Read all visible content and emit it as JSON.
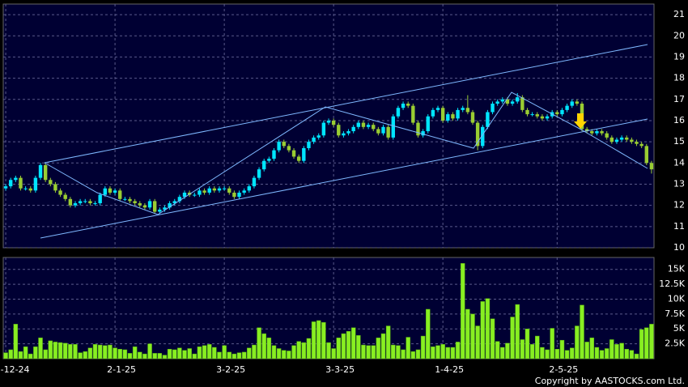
{
  "chart_data": [
    {
      "type": "candlestick",
      "categories": [
        "2-12-24",
        null,
        null,
        null,
        null,
        null,
        null,
        null,
        null,
        null,
        null,
        null,
        null,
        null,
        null,
        null,
        null,
        null,
        null,
        null,
        null,
        null,
        "2-1-25",
        null,
        null,
        null,
        null,
        null,
        null,
        null,
        null,
        null,
        null,
        null,
        null,
        null,
        null,
        null,
        null,
        null,
        null,
        null,
        null,
        null,
        "3-2-25",
        null,
        null,
        null,
        null,
        null,
        null,
        null,
        null,
        null,
        null,
        null,
        null,
        null,
        null,
        null,
        null,
        null,
        null,
        null,
        null,
        null,
        "3-3-25",
        null,
        null,
        null,
        null,
        null,
        null,
        null,
        null,
        null,
        null,
        null,
        null,
        null,
        null,
        null,
        null,
        null,
        null,
        null,
        null,
        null,
        "1-4-25",
        null,
        null,
        null,
        null,
        null,
        null,
        null,
        null,
        null,
        null,
        null,
        null,
        null,
        null,
        null,
        null,
        null,
        null,
        null,
        null,
        null,
        null,
        "2-5-25",
        null,
        null,
        null,
        null,
        null,
        null,
        null,
        null,
        null,
        null,
        null,
        null,
        null,
        null,
        null,
        null,
        null,
        null,
        null
      ],
      "open": [
        12.8,
        12.9,
        13.2,
        13.3,
        12.8,
        12.8,
        12.7,
        13.3,
        13.9,
        13.2,
        13.0,
        12.7,
        12.5,
        12.3,
        12.0,
        12.1,
        12.2,
        12.2,
        12.1,
        12.1,
        12.5,
        12.8,
        12.6,
        12.7,
        12.3,
        12.3,
        12.2,
        12.1,
        12.0,
        11.9,
        12.2,
        11.7,
        11.8,
        11.9,
        12.1,
        12.2,
        12.4,
        12.6,
        12.5,
        12.5,
        12.7,
        12.6,
        12.8,
        12.7,
        12.8,
        12.8,
        12.6,
        12.4,
        12.6,
        12.7,
        12.9,
        13.3,
        13.7,
        14.1,
        14.2,
        14.6,
        15.0,
        14.8,
        14.6,
        14.3,
        14.1,
        14.7,
        15.0,
        15.2,
        15.3,
        15.9,
        16.0,
        15.8,
        15.3,
        15.4,
        15.5,
        15.7,
        15.9,
        15.7,
        15.8,
        15.6,
        15.4,
        15.7,
        15.2,
        16.2,
        16.6,
        16.8,
        16.7,
        15.9,
        15.3,
        15.5,
        16.2,
        16.5,
        16.6,
        16.0,
        16.3,
        16.1,
        16.5,
        16.6,
        16.4,
        15.9,
        14.8,
        15.7,
        16.4,
        16.8,
        16.9,
        17.0,
        16.8,
        16.9,
        17.1,
        16.5,
        16.3,
        16.3,
        16.2,
        16.1,
        16.2,
        16.4,
        16.3,
        16.5,
        16.7,
        16.9,
        16.8,
        15.6,
        15.5,
        15.4,
        15.5,
        15.4,
        15.2,
        15.0,
        15.1,
        15.2,
        15.1,
        15.0,
        14.9,
        14.8,
        14.0
      ],
      "high": [
        13.0,
        13.3,
        13.4,
        13.4,
        12.9,
        12.9,
        13.4,
        14.0,
        14.0,
        13.3,
        13.1,
        12.8,
        12.6,
        12.4,
        12.2,
        12.3,
        12.3,
        12.3,
        12.2,
        12.6,
        12.9,
        12.9,
        12.8,
        12.8,
        12.4,
        12.4,
        12.3,
        12.2,
        12.1,
        12.3,
        12.3,
        11.9,
        12.0,
        12.2,
        12.3,
        12.5,
        12.7,
        12.7,
        12.6,
        12.8,
        12.8,
        12.9,
        12.9,
        12.9,
        12.9,
        12.9,
        12.7,
        12.7,
        12.8,
        13.0,
        13.4,
        13.8,
        14.2,
        14.3,
        14.7,
        15.1,
        15.1,
        14.9,
        14.7,
        14.4,
        14.8,
        15.1,
        15.3,
        15.4,
        16.0,
        16.1,
        16.1,
        15.9,
        15.5,
        15.6,
        15.8,
        16.0,
        16.0,
        15.9,
        15.9,
        15.7,
        15.8,
        15.8,
        16.3,
        16.7,
        16.9,
        16.9,
        16.8,
        16.0,
        15.6,
        16.3,
        16.6,
        16.7,
        16.7,
        16.4,
        16.4,
        16.6,
        16.7,
        17.2,
        16.5,
        16.0,
        15.8,
        16.5,
        16.9,
        17.0,
        17.1,
        17.1,
        17.0,
        17.3,
        17.2,
        16.6,
        16.4,
        16.4,
        16.3,
        16.3,
        16.5,
        16.5,
        16.6,
        16.8,
        17.0,
        17.0,
        16.9,
        15.7,
        15.6,
        15.6,
        15.6,
        15.5,
        15.3,
        15.2,
        15.3,
        15.3,
        15.2,
        15.1,
        15.0,
        14.9,
        14.1
      ],
      "low": [
        12.7,
        12.8,
        13.1,
        12.7,
        12.7,
        12.6,
        12.6,
        13.2,
        13.1,
        12.9,
        12.6,
        12.4,
        12.2,
        11.9,
        11.9,
        12.0,
        12.1,
        12.0,
        12.0,
        12.0,
        12.4,
        12.5,
        12.5,
        12.2,
        12.2,
        12.1,
        12.0,
        11.9,
        11.8,
        11.8,
        11.6,
        11.6,
        11.7,
        11.8,
        12.0,
        12.1,
        12.3,
        12.4,
        12.4,
        12.4,
        12.5,
        12.5,
        12.6,
        12.6,
        12.7,
        12.5,
        12.3,
        12.3,
        12.5,
        12.6,
        12.8,
        13.2,
        13.6,
        14.0,
        14.1,
        14.5,
        14.7,
        14.5,
        14.2,
        14.0,
        14.0,
        14.6,
        14.9,
        15.1,
        15.2,
        15.8,
        15.7,
        15.2,
        15.2,
        15.3,
        15.4,
        15.6,
        15.6,
        15.6,
        15.5,
        15.3,
        15.3,
        15.1,
        15.1,
        16.1,
        16.5,
        16.6,
        15.8,
        15.2,
        15.2,
        15.4,
        16.1,
        16.4,
        15.9,
        15.9,
        16.0,
        16.0,
        16.4,
        16.3,
        15.8,
        14.6,
        14.7,
        15.6,
        16.3,
        16.7,
        16.8,
        16.7,
        16.7,
        16.8,
        16.4,
        16.2,
        16.2,
        16.1,
        16.0,
        16.0,
        16.1,
        16.2,
        16.2,
        16.4,
        16.6,
        16.7,
        15.5,
        15.4,
        15.3,
        15.3,
        15.3,
        15.1,
        14.9,
        14.9,
        15.0,
        15.0,
        14.9,
        14.8,
        14.7,
        13.9,
        13.5
      ],
      "close": [
        12.9,
        13.2,
        13.3,
        12.8,
        12.8,
        12.7,
        13.3,
        13.9,
        13.2,
        13.0,
        12.7,
        12.5,
        12.3,
        12.0,
        12.1,
        12.2,
        12.2,
        12.1,
        12.1,
        12.5,
        12.8,
        12.6,
        12.7,
        12.3,
        12.3,
        12.2,
        12.1,
        12.0,
        11.9,
        12.2,
        11.7,
        11.8,
        11.9,
        12.1,
        12.2,
        12.4,
        12.6,
        12.5,
        12.5,
        12.7,
        12.6,
        12.8,
        12.7,
        12.8,
        12.8,
        12.6,
        12.4,
        12.6,
        12.7,
        12.9,
        13.3,
        13.7,
        14.1,
        14.2,
        14.6,
        15.0,
        14.8,
        14.6,
        14.3,
        14.1,
        14.7,
        15.0,
        15.2,
        15.3,
        15.9,
        16.0,
        15.8,
        15.3,
        15.4,
        15.5,
        15.7,
        15.9,
        15.7,
        15.8,
        15.6,
        15.4,
        15.7,
        15.2,
        16.2,
        16.6,
        16.8,
        16.7,
        15.9,
        15.3,
        15.5,
        16.2,
        16.5,
        16.6,
        16.0,
        16.3,
        16.1,
        16.5,
        16.6,
        16.4,
        15.9,
        14.8,
        15.7,
        16.4,
        16.8,
        16.9,
        17.0,
        16.8,
        16.9,
        17.1,
        16.5,
        16.3,
        16.3,
        16.2,
        16.1,
        16.2,
        16.4,
        16.3,
        16.5,
        16.7,
        16.9,
        16.8,
        15.6,
        15.5,
        15.4,
        15.5,
        15.4,
        15.2,
        15.0,
        15.1,
        15.2,
        15.1,
        15.0,
        14.9,
        14.8,
        14.0,
        13.7
      ],
      "up_color": "#00e5ff",
      "down_color": "#9acd32",
      "ylim": [
        10,
        21.5
      ],
      "yticks": [
        10,
        11,
        12,
        13,
        14,
        15,
        16,
        17,
        18,
        19,
        20,
        21
      ],
      "grid": true
    },
    {
      "type": "bar",
      "values": [
        1000,
        1500,
        5800,
        1200,
        2000,
        800,
        2000,
        3500,
        1500,
        3000,
        2800,
        2700,
        2600,
        2400,
        2400,
        1000,
        1200,
        1800,
        2400,
        2300,
        2200,
        2300,
        1800,
        1600,
        1500,
        900,
        2000,
        1100,
        800,
        2500,
        900,
        900,
        600,
        1600,
        1500,
        1800,
        1400,
        1700,
        800,
        2000,
        2200,
        2400,
        1900,
        1100,
        2200,
        1100,
        800,
        1000,
        1100,
        1800,
        2300,
        5200,
        4200,
        3500,
        2200,
        1700,
        1400,
        1300,
        2200,
        2900,
        2700,
        3400,
        6200,
        6400,
        6100,
        2700,
        1700,
        3500,
        4200,
        4600,
        5200,
        3900,
        2300,
        2200,
        2200,
        3500,
        4200,
        5500,
        2300,
        2200,
        1500,
        3600,
        1200,
        1500,
        3800,
        8300,
        2000,
        2200,
        2400,
        1900,
        1900,
        2800,
        16000,
        8300,
        7500,
        5500,
        9600,
        10100,
        6700,
        2900,
        1900,
        2600,
        7000,
        9100,
        3200,
        5000,
        2400,
        3800,
        1900,
        1500,
        5100,
        1600,
        3100,
        1400,
        1800,
        5500,
        9000,
        2800,
        3500,
        1900,
        1400,
        1700,
        3200,
        2400,
        2600,
        1600,
        1400,
        800,
        4900,
        5200,
        5800
      ],
      "color": "#88ee22",
      "ylim": [
        0,
        17000
      ],
      "yticks": [
        {
          "value": 2500,
          "label": "2.5K"
        },
        {
          "value": 5000,
          "label": "5K"
        },
        {
          "value": 7500,
          "label": "7.5K"
        },
        {
          "value": 10000,
          "label": "10K"
        },
        {
          "value": 12500,
          "label": "12.5K"
        },
        {
          "value": 15000,
          "label": "15K"
        }
      ],
      "grid": true
    }
  ],
  "footer": "Copyright by AASTOCKS.com Ltd."
}
